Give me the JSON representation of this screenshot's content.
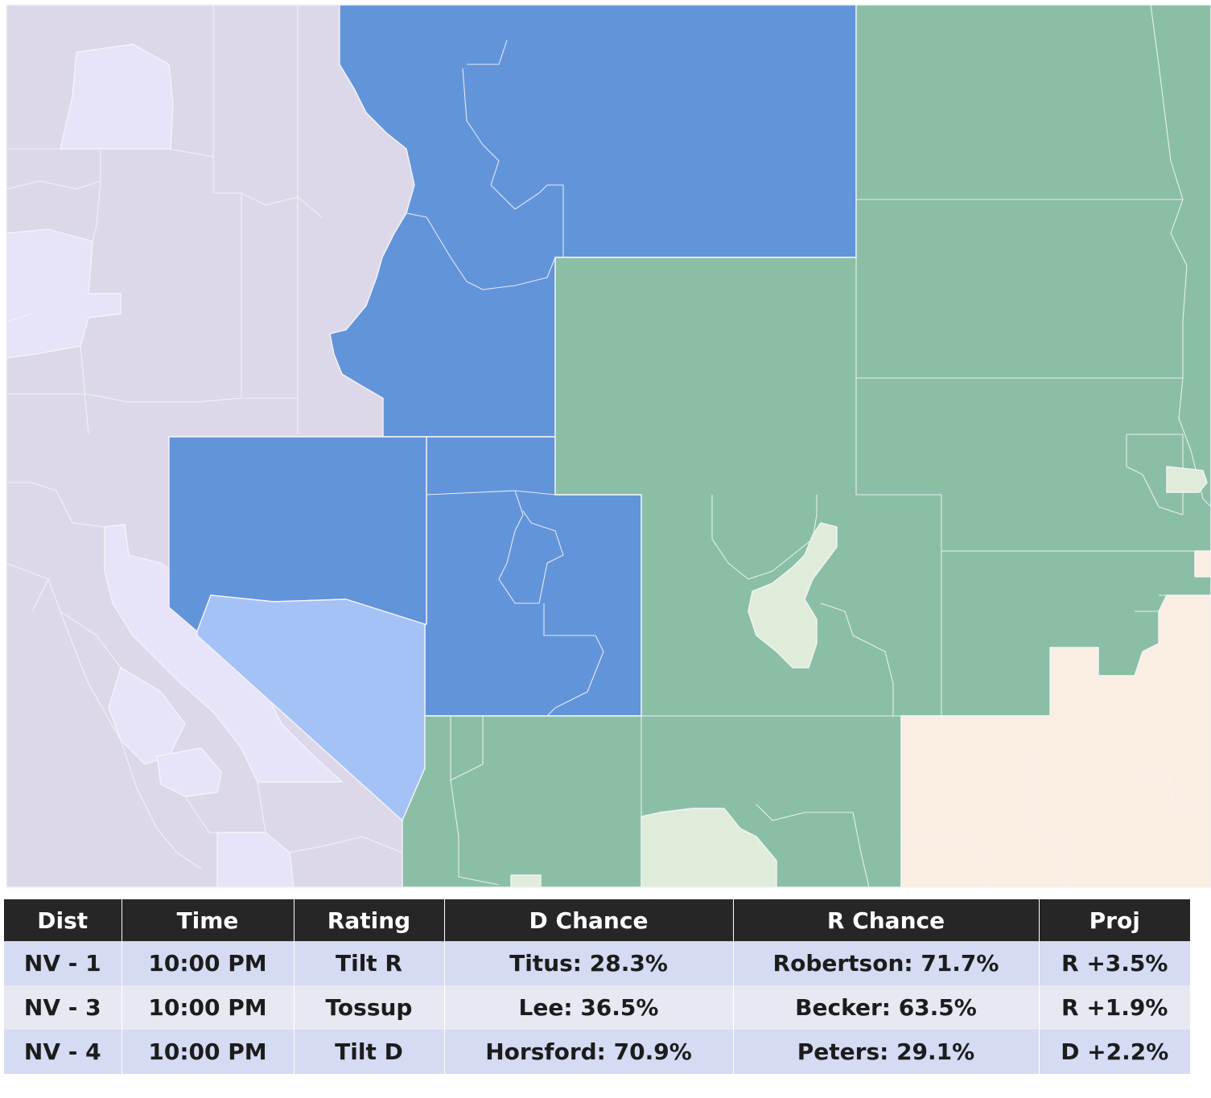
{
  "legend_colors": {
    "neighbor_state": "#dcd8ea",
    "neighbor_state_light": "#e7e3f8",
    "rating_tilt_r": "#6294da",
    "rating_tossup": "#a4c2f6",
    "other_state_green": "#8abfa6",
    "other_state_green_light": "#e0ecda",
    "other_state_peach": "#faeee2"
  },
  "table": {
    "headers": [
      "Dist",
      "Time",
      "Rating",
      "D Chance",
      "R Chance",
      "Proj"
    ],
    "rows": [
      {
        "dist": "NV - 1",
        "time": "10:00 PM",
        "rating": "Tilt R",
        "d_chance": "Titus: 28.3%",
        "r_chance": "Robertson: 71.7%",
        "proj": "R +3.5%"
      },
      {
        "dist": "NV - 3",
        "time": "10:00 PM",
        "rating": "Tossup",
        "d_chance": "Lee: 36.5%",
        "r_chance": "Becker: 63.5%",
        "proj": "R +1.9%"
      },
      {
        "dist": "NV - 4",
        "time": "10:00 PM",
        "rating": "Tilt D",
        "d_chance": "Horsford: 70.9%",
        "r_chance": "Peters: 29.1%",
        "proj": "D +2.2%"
      }
    ]
  }
}
